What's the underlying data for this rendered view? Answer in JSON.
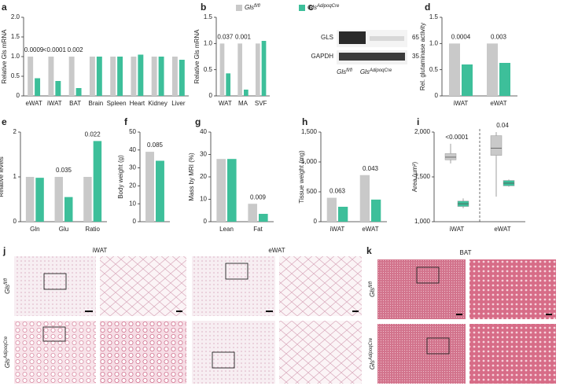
{
  "legend": [
    {
      "base": "Gls",
      "sup": "fl/fl",
      "color": "#c9c9c9"
    },
    {
      "base": "Gls",
      "sup": "AdipoqCre",
      "color": "#3dbf9a"
    }
  ],
  "blot": {
    "panel": "c",
    "rows": [
      "GLS",
      "GAPDH"
    ],
    "markers": [
      "65",
      "35"
    ],
    "groups": [
      {
        "base": "Gls",
        "sup": "fl/fl"
      },
      {
        "base": "Gls",
        "sup": "AdipoqCre"
      }
    ]
  },
  "histology": {
    "panels": [
      "j",
      "k"
    ],
    "columns": [
      "iWAT",
      "eWAT",
      "BAT"
    ],
    "rows": [
      {
        "base": "Gls",
        "sup": "fl/fl"
      },
      {
        "base": "Gls",
        "sup": "AdipoqCre"
      }
    ]
  },
  "chart_data": [
    {
      "type": "bar",
      "panel": "a",
      "ylabel": "Relative Gls mRNA",
      "categories": [
        "eWAT",
        "iWAT",
        "BAT",
        "Brain",
        "Spleen",
        "Heart",
        "Kidney",
        "Liver"
      ],
      "series": [
        {
          "color": "#c9c9c9",
          "values": [
            1.0,
            1.0,
            1.0,
            1.0,
            1.0,
            1.0,
            1.0,
            1.0
          ]
        },
        {
          "color": "#3dbf9a",
          "values": [
            0.45,
            0.38,
            0.2,
            1.0,
            1.0,
            1.05,
            1.0,
            0.92
          ]
        }
      ],
      "p_values": [
        "0.0009",
        "<0.0001",
        "0.002",
        null,
        null,
        null,
        null,
        null
      ],
      "ylim": [
        0,
        2
      ],
      "yticks": [
        0,
        0.5,
        {
          "value": 1,
          "label": "1.0"
        },
        1.5,
        {
          "value": 2,
          "label": "2.0"
        }
      ]
    },
    {
      "type": "bar",
      "panel": "b",
      "ylabel": "Relative Gls mRNA",
      "categories": [
        "WAT",
        "MA",
        "SVF"
      ],
      "series": [
        {
          "color": "#c9c9c9",
          "values": [
            1.0,
            1.0,
            1.0
          ]
        },
        {
          "color": "#3dbf9a",
          "values": [
            0.43,
            0.12,
            1.05
          ]
        }
      ],
      "p_values": [
        "0.037",
        "0.001",
        null
      ],
      "ylim": [
        0,
        1.5
      ],
      "yticks": [
        0,
        0.5,
        {
          "value": 1,
          "label": "1.0"
        },
        1.5
      ]
    },
    {
      "type": "bar",
      "panel": "d",
      "ylabel": "Rel. glutaminase activity",
      "categories": [
        "iWAT",
        "eWAT"
      ],
      "series": [
        {
          "color": "#c9c9c9",
          "values": [
            1.0,
            1.0
          ]
        },
        {
          "color": "#3dbf9a",
          "values": [
            0.6,
            0.63
          ]
        }
      ],
      "p_values": [
        "0.0004",
        "0.003"
      ],
      "ylim": [
        0,
        1.5
      ],
      "yticks": [
        0,
        0.5,
        {
          "value": 1,
          "label": "1.0"
        },
        1.5
      ]
    },
    {
      "type": "bar",
      "panel": "e",
      "ylabel": "Relative levels",
      "categories": [
        "Gln",
        "Glu",
        "Ratio"
      ],
      "series": [
        {
          "color": "#c9c9c9",
          "values": [
            1.0,
            1.0,
            1.0
          ]
        },
        {
          "color": "#3dbf9a",
          "values": [
            0.98,
            0.55,
            1.8
          ]
        }
      ],
      "p_values": [
        null,
        "0.035",
        "0.022"
      ],
      "ylim": [
        0,
        2
      ],
      "yticks": [
        0,
        1,
        2
      ]
    },
    {
      "type": "bar",
      "panel": "f",
      "ylabel": "Body weight (g)",
      "categories": [
        null
      ],
      "series": [
        {
          "color": "#c9c9c9",
          "values": [
            39
          ]
        },
        {
          "color": "#3dbf9a",
          "values": [
            34
          ]
        }
      ],
      "p_values": [
        "0.085"
      ],
      "ylim": [
        0,
        50
      ],
      "yticks": [
        0,
        10,
        20,
        30,
        40,
        50
      ]
    },
    {
      "type": "bar",
      "panel": "g",
      "ylabel": "Mass by MRI (%)",
      "categories": [
        "Lean",
        "Fat"
      ],
      "series": [
        {
          "color": "#c9c9c9",
          "values": [
            28,
            8
          ]
        },
        {
          "color": "#3dbf9a",
          "values": [
            28,
            3.5
          ]
        }
      ],
      "p_values": [
        null,
        "0.009"
      ],
      "ylim": [
        0,
        40
      ],
      "yticks": [
        0,
        10,
        20,
        30,
        40
      ]
    },
    {
      "type": "bar",
      "panel": "h",
      "ylabel": "Tissue weight (mg)",
      "categories": [
        "iWAT",
        "eWAT"
      ],
      "series": [
        {
          "color": "#c9c9c9",
          "values": [
            400,
            780
          ]
        },
        {
          "color": "#3dbf9a",
          "values": [
            250,
            370
          ]
        }
      ],
      "p_values": [
        "0.063",
        "0.043"
      ],
      "ylim": [
        0,
        1500
      ],
      "yticks": [
        0,
        500,
        {
          "value": 1000,
          "label": "1,000"
        },
        {
          "value": 1500,
          "label": "1,500"
        }
      ]
    },
    {
      "type": "box",
      "panel": "i",
      "ylabel": "Area (µm²)",
      "categories": [
        "iWAT",
        "eWAT"
      ],
      "series": [
        {
          "color": "#c9c9c9",
          "boxes": [
            {
              "min": 1650,
              "q1": 1690,
              "median": 1720,
              "q3": 1760,
              "max": 1870
            },
            {
              "min": 1280,
              "q1": 1740,
              "median": 1820,
              "q3": 1960,
              "max": 2000
            }
          ]
        },
        {
          "color": "#3dbf9a",
          "boxes": [
            {
              "min": 1150,
              "q1": 1170,
              "median": 1200,
              "q3": 1230,
              "max": 1260
            },
            {
              "min": 1390,
              "q1": 1400,
              "median": 1430,
              "q3": 1460,
              "max": 1470
            }
          ]
        }
      ],
      "p_values": [
        "<0.0001",
        "0.04"
      ],
      "ylim": [
        1000,
        2000
      ],
      "yticks": [
        {
          "value": 1000,
          "label": "1,000"
        },
        {
          "value": 1500,
          "label": "1,500"
        },
        {
          "value": 2000,
          "label": "2,000"
        }
      ]
    }
  ]
}
